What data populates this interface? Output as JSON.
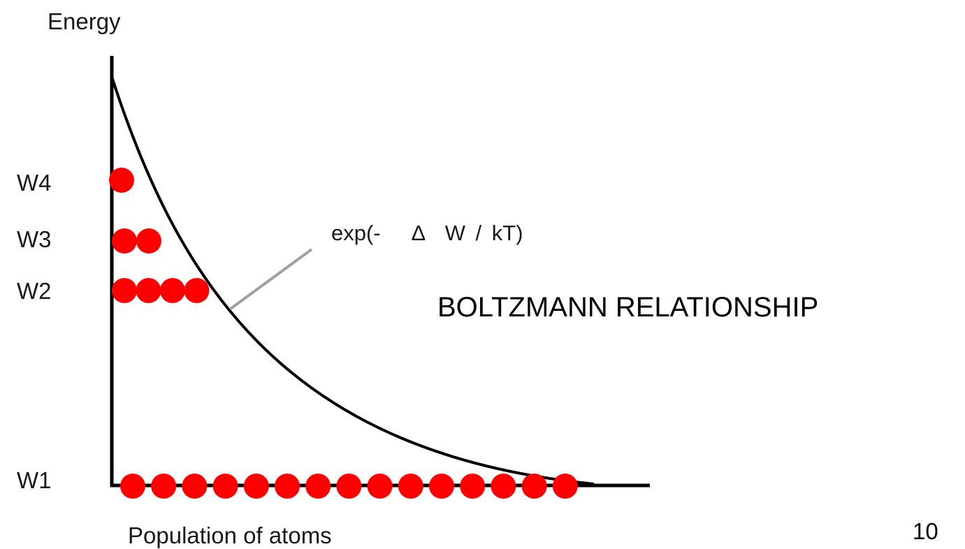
{
  "y_axis_label": "Energy",
  "x_axis_label": "Population of atoms",
  "formula_label": "exp(-   Δ  W / kT)",
  "heading": "BOLTZMANN RELATIONSHIP",
  "slide_number": "10",
  "colors": {
    "atom": "#ff0000",
    "axis": "#000000",
    "curve": "#000000",
    "leader_line": "#a0a0a0"
  },
  "energy_levels": [
    {
      "label": "W1",
      "atom_count": 15
    },
    {
      "label": "W2",
      "atom_count": 4
    },
    {
      "label": "W3",
      "atom_count": 2
    },
    {
      "label": "W4",
      "atom_count": 1
    }
  ]
}
